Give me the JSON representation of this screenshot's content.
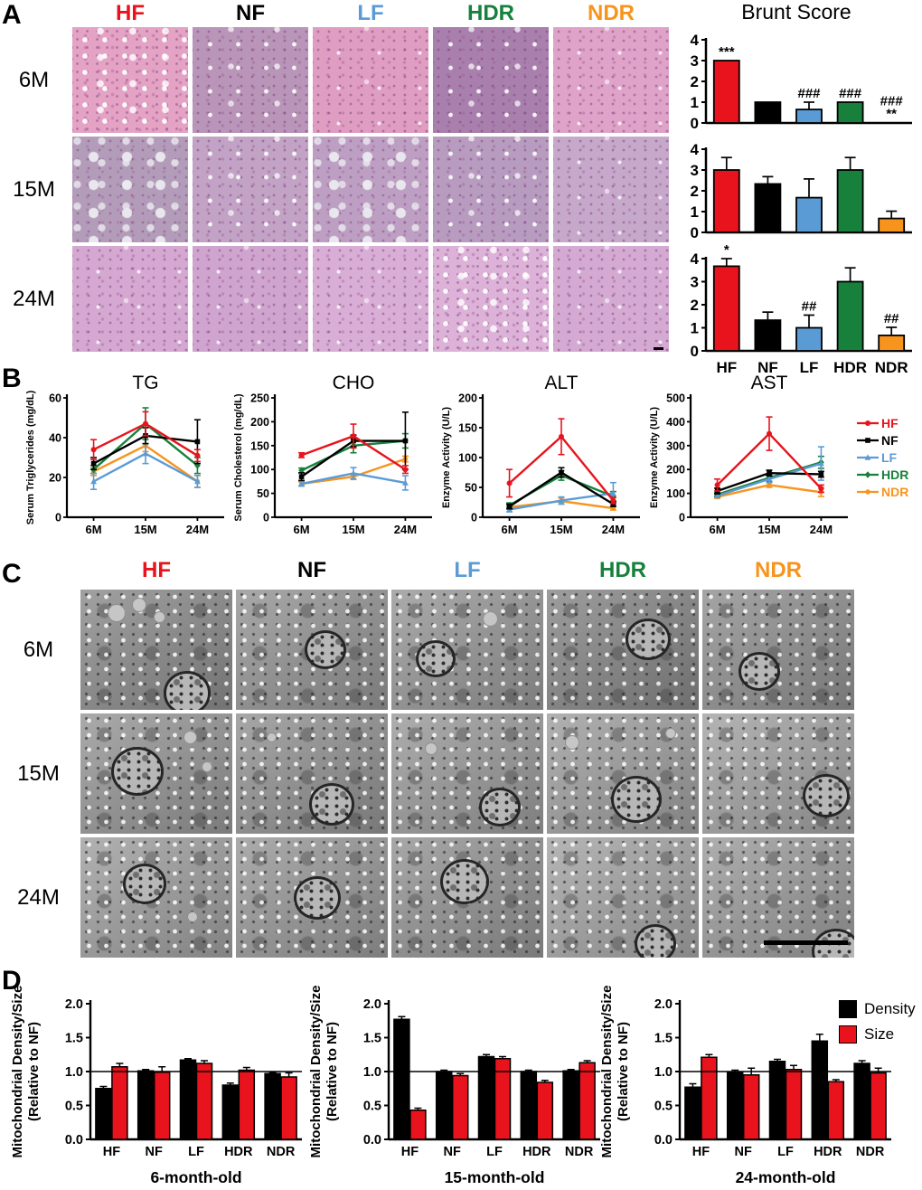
{
  "groups": {
    "labels": [
      "HF",
      "NF",
      "LF",
      "HDR",
      "NDR"
    ],
    "colors": [
      "#e8131c",
      "#000000",
      "#5b9bd5",
      "#17813c",
      "#f7941d"
    ]
  },
  "panel_a": {
    "label": "A",
    "col_labels": [
      "HF",
      "NF",
      "LF",
      "HDR",
      "NDR"
    ],
    "row_labels": [
      "6M",
      "15M",
      "24M"
    ],
    "brunt_title": "Brunt Score",
    "tile_colors": [
      [
        "#e4a3c5",
        "#b995b9",
        "#df9dc2",
        "#a97fad",
        "#dfa3c9"
      ],
      [
        "#b39cb9",
        "#c2a3c6",
        "#bd9fc3",
        "#b79cc0",
        "#c6a8cb"
      ],
      [
        "#d5a8d2",
        "#cfa5d0",
        "#d9aed6",
        "#ddb2d8",
        "#d4aad3"
      ]
    ]
  },
  "panel_b": {
    "label": "B"
  },
  "panel_c": {
    "label": "C",
    "col_labels": [
      "HF",
      "NF",
      "LF",
      "HDR",
      "NDR"
    ],
    "row_labels": [
      "6M",
      "15M",
      "24M"
    ],
    "tile_shades": [
      [
        "#8f8f8f",
        "#989898",
        "#9b9b9b",
        "#8a8a8a",
        "#949494"
      ],
      [
        "#9a9a9a",
        "#969696",
        "#9e9e9e",
        "#a2a2a2",
        "#a6a6a6"
      ],
      [
        "#a3a3a3",
        "#9c9c9c",
        "#979797",
        "#a8a8a8",
        "#9f9f9f"
      ]
    ]
  },
  "panel_d": {
    "label": "D",
    "legend": [
      {
        "label": "Density",
        "color": "#000000"
      },
      {
        "label": "Size",
        "color": "#e8131c"
      }
    ]
  },
  "chart_data": [
    {
      "id": "brunt-6m",
      "panel": "A",
      "type": "bar",
      "measure": "Brunt Score",
      "row": "6M",
      "categories": [
        "HF",
        "NF",
        "LF",
        "HDR",
        "NDR"
      ],
      "values": [
        3,
        1,
        0.65,
        1,
        0.03
      ],
      "errors": [
        0,
        0,
        0.35,
        0,
        0
      ],
      "annotations": [
        "***",
        "",
        "###",
        "###",
        "###|**"
      ],
      "ylim": [
        0,
        4
      ],
      "yticks": [
        0,
        1,
        2,
        3,
        4
      ],
      "show_x_labels": false
    },
    {
      "id": "brunt-15m",
      "panel": "A",
      "type": "bar",
      "measure": "Brunt Score",
      "row": "15M",
      "categories": [
        "HF",
        "NF",
        "LF",
        "HDR",
        "NDR"
      ],
      "values": [
        3,
        2.33,
        1.67,
        3,
        0.67
      ],
      "errors": [
        0.6,
        0.35,
        0.9,
        0.6,
        0.35
      ],
      "annotations": [
        "",
        "",
        "",
        "",
        ""
      ],
      "ylim": [
        0,
        4
      ],
      "yticks": [
        0,
        1,
        2,
        3,
        4
      ],
      "show_x_labels": false
    },
    {
      "id": "brunt-24m",
      "panel": "A",
      "type": "bar",
      "measure": "Brunt Score",
      "row": "24M",
      "categories": [
        "HF",
        "NF",
        "LF",
        "HDR",
        "NDR"
      ],
      "values": [
        3.67,
        1.33,
        1,
        3,
        0.67
      ],
      "errors": [
        0.33,
        0.35,
        0.55,
        0.6,
        0.35
      ],
      "annotations": [
        "*",
        "",
        "##",
        "",
        "##"
      ],
      "ylim": [
        0,
        4
      ],
      "yticks": [
        0,
        1,
        2,
        3,
        4
      ],
      "show_x_labels": true
    },
    {
      "id": "tg",
      "panel": "B",
      "type": "line",
      "title": "TG",
      "ylabel": "Serum Triglycerides (mg/dL)",
      "x": [
        "6M",
        "15M",
        "24M"
      ],
      "ylim": [
        0,
        60
      ],
      "yticks": [
        0,
        20,
        40,
        60
      ],
      "series": [
        {
          "name": "HF",
          "values": [
            34,
            47,
            31
          ],
          "errors": [
            5,
            6,
            3
          ]
        },
        {
          "name": "NF",
          "values": [
            27,
            41,
            38
          ],
          "errors": [
            3,
            4,
            11
          ]
        },
        {
          "name": "LF",
          "values": [
            18,
            32,
            18
          ],
          "errors": [
            4,
            5,
            3
          ]
        },
        {
          "name": "HDR",
          "values": [
            24,
            47,
            26
          ],
          "errors": [
            2,
            8,
            4
          ]
        },
        {
          "name": "NDR",
          "values": [
            23,
            36,
            18
          ],
          "errors": [
            2,
            3,
            3
          ]
        }
      ]
    },
    {
      "id": "cho",
      "panel": "B",
      "type": "line",
      "title": "CHO",
      "ylabel": "Serum Cholesterol (mg/dL)",
      "x": [
        "6M",
        "15M",
        "24M"
      ],
      "ylim": [
        0,
        250
      ],
      "yticks": [
        0,
        50,
        100,
        150,
        200,
        250
      ],
      "series": [
        {
          "name": "HF",
          "values": [
            130,
            170,
            100
          ],
          "errors": [
            5,
            25,
            8
          ]
        },
        {
          "name": "NF",
          "values": [
            85,
            160,
            160
          ],
          "errors": [
            8,
            12,
            60
          ]
        },
        {
          "name": "LF",
          "values": [
            70,
            92,
            72
          ],
          "errors": [
            5,
            12,
            15
          ]
        },
        {
          "name": "HDR",
          "values": [
            98,
            150,
            160
          ],
          "errors": [
            5,
            15,
            15
          ]
        },
        {
          "name": "NDR",
          "values": [
            70,
            85,
            122
          ],
          "errors": [
            4,
            6,
            6
          ]
        }
      ]
    },
    {
      "id": "alt",
      "panel": "B",
      "type": "line",
      "title": "ALT",
      "ylabel": "Enzyme Activity (U/L)",
      "x": [
        "6M",
        "15M",
        "24M"
      ],
      "ylim": [
        0,
        200
      ],
      "yticks": [
        0,
        50,
        100,
        150,
        200
      ],
      "series": [
        {
          "name": "HF",
          "values": [
            57,
            135,
            28
          ],
          "errors": [
            23,
            30,
            5
          ]
        },
        {
          "name": "NF",
          "values": [
            18,
            75,
            22
          ],
          "errors": [
            4,
            8,
            4
          ]
        },
        {
          "name": "LF",
          "values": [
            13,
            28,
            40
          ],
          "errors": [
            4,
            6,
            18
          ]
        },
        {
          "name": "HDR",
          "values": [
            20,
            70,
            35
          ],
          "errors": [
            4,
            8,
            8
          ]
        },
        {
          "name": "NDR",
          "values": [
            17,
            27,
            15
          ],
          "errors": [
            3,
            5,
            3
          ]
        }
      ]
    },
    {
      "id": "ast",
      "panel": "B",
      "type": "line",
      "title": "AST",
      "ylabel": "Enzyme Activity (U/L)",
      "x": [
        "6M",
        "15M",
        "24M"
      ],
      "ylim": [
        0,
        500
      ],
      "yticks": [
        0,
        100,
        200,
        300,
        400,
        500
      ],
      "series": [
        {
          "name": "HF",
          "values": [
            135,
            350,
            120
          ],
          "errors": [
            25,
            70,
            15
          ]
        },
        {
          "name": "NF",
          "values": [
            110,
            185,
            180
          ],
          "errors": [
            12,
            12,
            12
          ]
        },
        {
          "name": "LF",
          "values": [
            90,
            160,
            225
          ],
          "errors": [
            8,
            15,
            70
          ]
        },
        {
          "name": "HDR",
          "values": [
            95,
            165,
            230
          ],
          "errors": [
            8,
            15,
            25
          ]
        },
        {
          "name": "NDR",
          "values": [
            85,
            135,
            105
          ],
          "errors": [
            6,
            10,
            18
          ]
        }
      ]
    },
    {
      "id": "mito-6m",
      "panel": "D",
      "type": "grouped_bar",
      "xlabel": "6-month-old",
      "ylabel": [
        "Mitochondrial Density/Size",
        "(Relative to NF)"
      ],
      "categories": [
        "HF",
        "NF",
        "LF",
        "HDR",
        "NDR"
      ],
      "ylim": [
        0,
        2
      ],
      "yticks": [
        "0.0",
        "0.5",
        "1.0",
        "1.5",
        "2.0"
      ],
      "baseline": 1.0,
      "series": [
        {
          "name": "Density",
          "color": "#000000",
          "values": [
            0.75,
            1.01,
            1.17,
            0.8,
            0.97
          ],
          "errors": [
            0.03,
            0.02,
            0.02,
            0.03,
            0.02
          ]
        },
        {
          "name": "Size",
          "color": "#e8131c",
          "values": [
            1.07,
            0.99,
            1.12,
            1.02,
            0.92
          ],
          "errors": [
            0.05,
            0.08,
            0.04,
            0.04,
            0.06
          ]
        }
      ]
    },
    {
      "id": "mito-15m",
      "panel": "D",
      "type": "grouped_bar",
      "xlabel": "15-month-old",
      "ylabel": [
        "Mitochondrial Density/Size",
        "(Relative to NF)"
      ],
      "categories": [
        "HF",
        "NF",
        "LF",
        "HDR",
        "NDR"
      ],
      "ylim": [
        0,
        2
      ],
      "yticks": [
        "0.0",
        "0.5",
        "1.0",
        "1.5",
        "2.0"
      ],
      "baseline": 1.0,
      "series": [
        {
          "name": "Density",
          "color": "#000000",
          "values": [
            1.77,
            1.0,
            1.22,
            1.0,
            1.01
          ],
          "errors": [
            0.04,
            0.02,
            0.03,
            0.02,
            0.02
          ]
        },
        {
          "name": "Size",
          "color": "#e8131c",
          "values": [
            0.43,
            0.94,
            1.19,
            0.84,
            1.13
          ],
          "errors": [
            0.03,
            0.03,
            0.03,
            0.03,
            0.03
          ]
        }
      ]
    },
    {
      "id": "mito-24m",
      "panel": "D",
      "type": "grouped_bar",
      "xlabel": "24-month-old",
      "ylabel": [
        "Mitochondrial Density/Size",
        "(Relative to NF)"
      ],
      "categories": [
        "HF",
        "NF",
        "LF",
        "HDR",
        "NDR"
      ],
      "ylim": [
        0,
        2
      ],
      "yticks": [
        "0.0",
        "0.5",
        "1.0",
        "1.5",
        "2.0"
      ],
      "baseline": 1.0,
      "series": [
        {
          "name": "Density",
          "color": "#000000",
          "values": [
            0.77,
            0.99,
            1.15,
            1.45,
            1.12
          ],
          "errors": [
            0.05,
            0.03,
            0.03,
            0.1,
            0.04
          ]
        },
        {
          "name": "Size",
          "color": "#e8131c",
          "values": [
            1.21,
            0.95,
            1.03,
            0.85,
            0.98
          ],
          "errors": [
            0.04,
            0.1,
            0.06,
            0.03,
            0.07
          ]
        }
      ]
    }
  ]
}
